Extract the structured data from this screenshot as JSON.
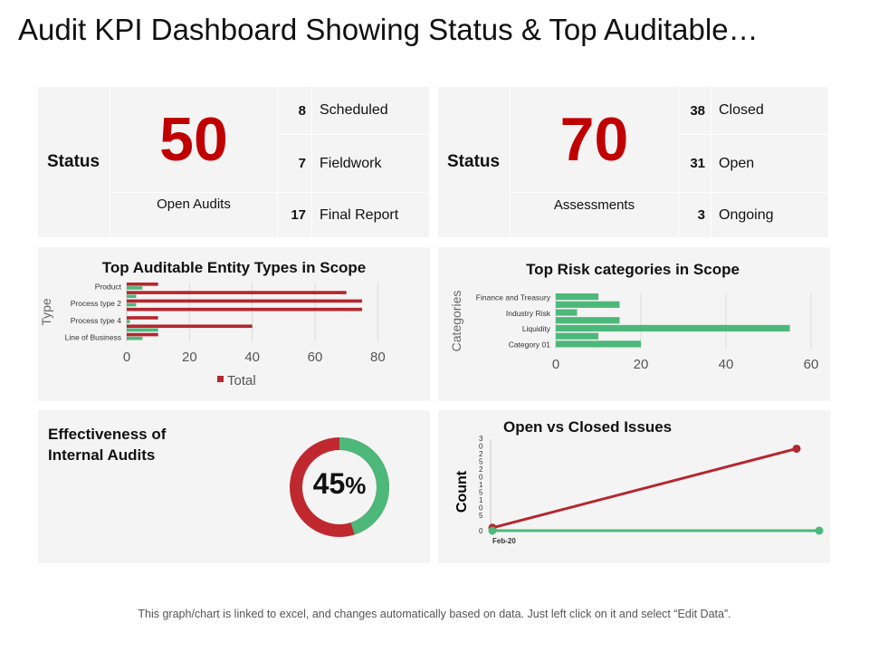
{
  "title": "Audit KPI Dashboard Showing Status & Top Auditable…",
  "status_left": {
    "label": "Status",
    "value": "50",
    "caption": "Open Audits",
    "rows": [
      {
        "count": "8",
        "label": "Scheduled"
      },
      {
        "count": "7",
        "label": "Fieldwork"
      },
      {
        "count": "17",
        "label": "Final Report"
      }
    ]
  },
  "status_right": {
    "label": "Status",
    "value": "70",
    "caption": "Assessments",
    "rows": [
      {
        "count": "38",
        "label": "Closed"
      },
      {
        "count": "31",
        "label": "Open"
      },
      {
        "count": "3",
        "label": "Ongoing"
      }
    ]
  },
  "effectiveness": {
    "title_line1": "Effectiveness of",
    "title_line2": "Internal Audits",
    "value": "45",
    "unit": "%",
    "percent": 45,
    "colors": {
      "filled": "#4cb87a",
      "rest": "#c0282f"
    }
  },
  "footer": "This graph/chart is linked to excel, and changes automatically based on data. Just left click on it and select “Edit Data”.",
  "chart_data": [
    {
      "type": "bar",
      "orientation": "horizontal",
      "title": "Top Auditable Entity Types in Scope",
      "ylabel": "Type",
      "xlabel": "",
      "categories": [
        "Product",
        "",
        "Process type 2",
        "",
        "Process type 4",
        "",
        "Line of Business"
      ],
      "series": [
        {
          "name": "Total",
          "color": "#b5262e",
          "values": [
            10,
            70,
            75,
            75,
            10,
            40,
            10
          ]
        },
        {
          "color": "#4cb87a",
          "values": [
            5,
            3,
            3,
            0,
            1,
            10,
            5
          ]
        }
      ],
      "xlim": [
        0,
        90
      ],
      "xticks": [
        "0",
        "20",
        "40",
        "60",
        "80"
      ],
      "grid": true,
      "legend": "bottom"
    },
    {
      "type": "bar",
      "orientation": "horizontal",
      "title": "Top Risk categories in Scope",
      "ylabel": "Categories",
      "xlabel": "",
      "categories": [
        "Finance and Treasury",
        "",
        "Industry Risk",
        "",
        "Liquidity",
        "",
        "Category 01"
      ],
      "series": [
        {
          "color": "#4cb87a",
          "values": [
            10,
            15,
            5,
            15,
            55,
            10,
            20
          ]
        }
      ],
      "xlim": [
        0,
        60
      ],
      "xticks": [
        "0",
        "20",
        "40",
        "60"
      ],
      "grid": true
    },
    {
      "type": "line",
      "title": "Open vs Closed Issues",
      "ylabel": "Count",
      "xticks": [
        "Feb-20"
      ],
      "yticks": [
        "30",
        "25",
        "20",
        "15",
        "10",
        "5",
        "0"
      ],
      "ylim": [
        0,
        30
      ],
      "series": [
        {
          "color": "#b5262e",
          "values": [
            1,
            28
          ]
        },
        {
          "color": "#4cb87a",
          "values": [
            0,
            0
          ]
        }
      ]
    }
  ]
}
